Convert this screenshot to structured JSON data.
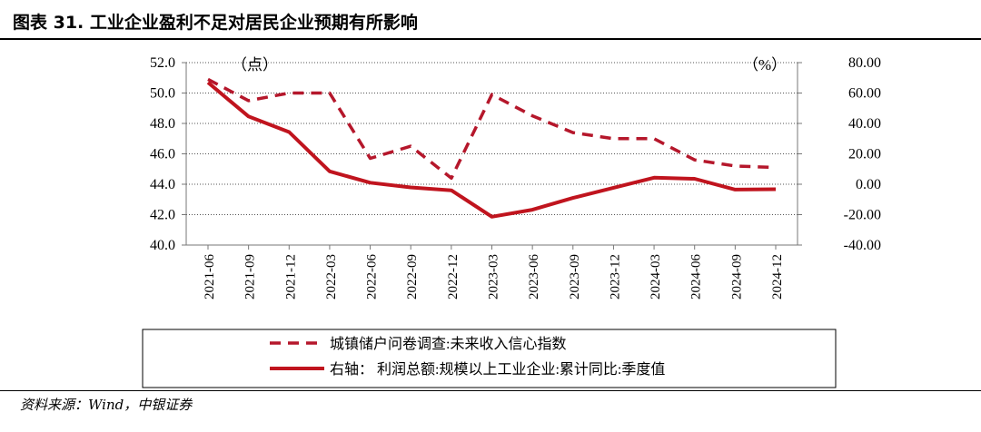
{
  "header": {
    "title": "图表 31. 工业企业盈利不足对居民企业预期有所影响"
  },
  "footer": {
    "source": "资料来源：Wind，中银证券"
  },
  "chart_data": {
    "type": "line",
    "title": "",
    "left_unit": "（点）",
    "right_unit": "（%）",
    "ylim_left": [
      40,
      52
    ],
    "left_ticks": [
      "40.0",
      "42.0",
      "44.0",
      "46.0",
      "48.0",
      "50.0",
      "52.0"
    ],
    "ylim_right": [
      -40,
      80
    ],
    "right_ticks": [
      "-40.00",
      "-20.00",
      "0.00",
      "20.00",
      "40.00",
      "60.00",
      "80.00"
    ],
    "grid": "horizontal-dotted",
    "legend_position": "bottom",
    "categories": [
      "2021-06",
      "2021-09",
      "2021-12",
      "2022-03",
      "2022-06",
      "2022-09",
      "2022-12",
      "2023-03",
      "2023-06",
      "2023-09",
      "2023-12",
      "2024-03",
      "2024-06",
      "2024-09",
      "2024-12"
    ],
    "series": [
      {
        "name": "城镇储户问卷调查:未来收入信心指数",
        "axis": "left",
        "style": "dashed",
        "color": "#b5172b",
        "values": [
          50.9,
          49.5,
          50.0,
          50.0,
          45.7,
          46.5,
          44.4,
          49.9,
          48.5,
          47.4,
          47.0,
          47.0,
          45.6,
          45.2,
          45.1
        ]
      },
      {
        "name": "右轴： 利润总额:规模以上工业企业:累计同比:季度值",
        "axis": "right",
        "style": "solid",
        "color": "#c0141e",
        "values": [
          66.9,
          44.6,
          34.3,
          8.5,
          1.0,
          -2.1,
          -4.0,
          -21.4,
          -16.8,
          -9.0,
          -2.3,
          4.3,
          3.6,
          -3.5,
          -3.3
        ]
      }
    ]
  }
}
